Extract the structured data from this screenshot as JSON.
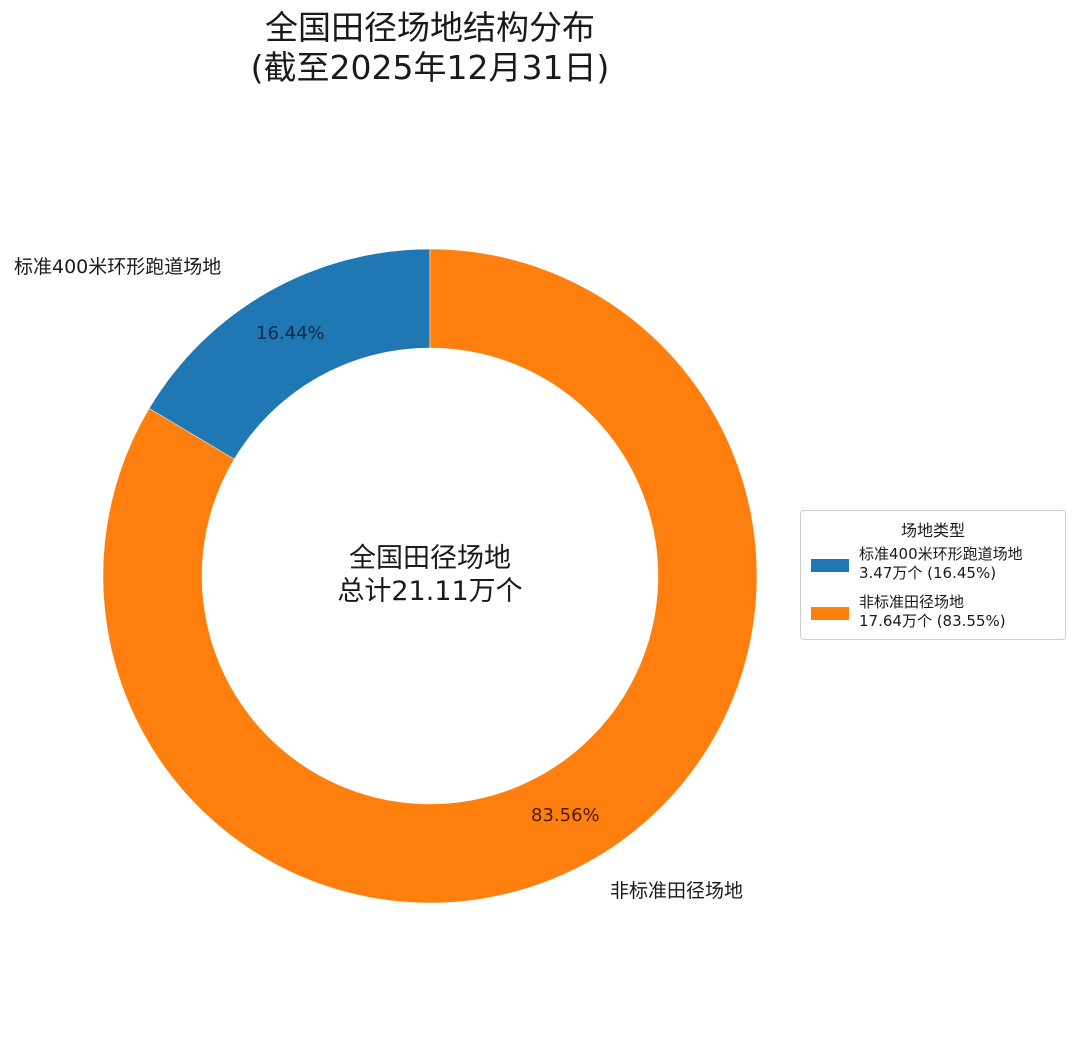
{
  "title": {
    "line1": "全国田径场地结构分布",
    "line2": "(截至2025年12月31日)"
  },
  "center": {
    "line1": "全国田径场地",
    "line2": "总计21.11万个"
  },
  "slices": [
    {
      "name": "标准400米环形跑道场地",
      "pct_label": "16.44%",
      "color": "#1f77b4"
    },
    {
      "name": "非标准田径场地",
      "pct_label": "83.56%",
      "color": "#ff7f0e"
    }
  ],
  "legend": {
    "title": "场地类型",
    "items": [
      {
        "line1": "标准400米环形跑道场地",
        "line2": "3.47万个 (16.45%)",
        "color": "#1f77b4"
      },
      {
        "line1": "非标准田径场地",
        "line2": "17.64万个 (83.55%)",
        "color": "#ff7f0e"
      }
    ]
  },
  "chart_data": {
    "type": "pie",
    "subtype": "donut",
    "title": "全国田径场地结构分布 (截至2025年12月31日)",
    "categories": [
      "标准400米环形跑道场地",
      "非标准田径场地"
    ],
    "values": [
      3.47,
      17.64
    ],
    "unit": "万个",
    "percent_labels": [
      "16.44%",
      "83.56%"
    ],
    "legend_percents": [
      "16.45%",
      "83.55%"
    ],
    "total": 21.11,
    "center_text": "全国田径场地 总计21.11万个",
    "colors": [
      "#1f77b4",
      "#ff7f0e"
    ],
    "start_angle": 90,
    "direction": "counterclockwise",
    "legend_title": "场地类型",
    "legend_position": "right"
  }
}
